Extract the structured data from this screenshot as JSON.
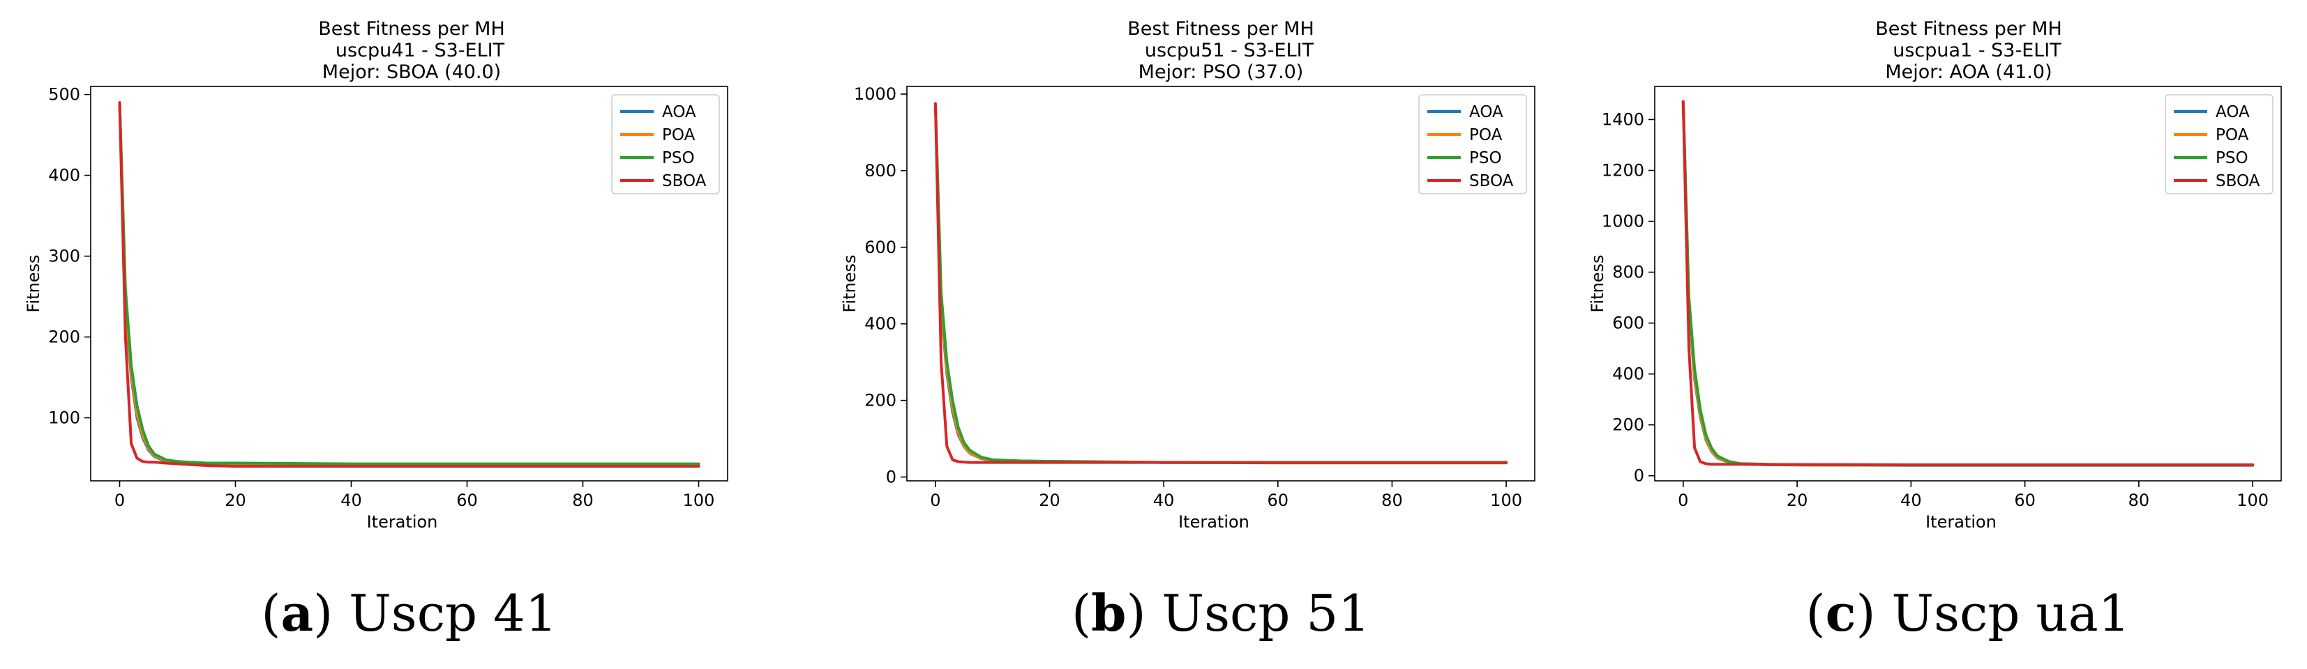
{
  "colors": {
    "AOA": "#1f77b4",
    "POA": "#ff7f0e",
    "PSO": "#2ca02c",
    "SBOA": "#d62728"
  },
  "chart_data": [
    {
      "type": "line",
      "title": "Best Fitness per MH",
      "subtitle": "uscpu41 - S3-ELIT",
      "best": "Mejor: SBOA (40.0)",
      "xlabel": "Iteration",
      "ylabel": "Fitness",
      "xlim": [
        -5,
        105
      ],
      "ylim": [
        22,
        510
      ],
      "xticks": [
        0,
        20,
        40,
        60,
        80,
        100
      ],
      "yticks": [
        100,
        200,
        300,
        400,
        500
      ],
      "legend_position": "top-right",
      "caption_letter": "a",
      "caption_text": " Uscp 41",
      "series": [
        {
          "name": "AOA",
          "x": [
            0,
            1,
            2,
            3,
            4,
            5,
            6,
            8,
            10,
            15,
            20,
            40,
            60,
            80,
            100
          ],
          "y": [
            490,
            240,
            150,
            100,
            75,
            60,
            52,
            46,
            44,
            43,
            42,
            42,
            42,
            42,
            42
          ]
        },
        {
          "name": "POA",
          "x": [
            0,
            1,
            2,
            3,
            4,
            5,
            6,
            8,
            10,
            15,
            20,
            40,
            60,
            80,
            100
          ],
          "y": [
            490,
            245,
            155,
            105,
            78,
            62,
            53,
            47,
            45,
            43,
            42,
            42,
            42,
            42,
            42
          ]
        },
        {
          "name": "PSO",
          "x": [
            0,
            1,
            2,
            3,
            4,
            5,
            6,
            8,
            10,
            15,
            20,
            40,
            60,
            80,
            100
          ],
          "y": [
            490,
            260,
            165,
            115,
            85,
            65,
            55,
            48,
            46,
            44,
            44,
            43,
            43,
            43,
            43
          ]
        },
        {
          "name": "SBOA",
          "x": [
            0,
            1,
            2,
            3,
            4,
            5,
            6,
            8,
            10,
            15,
            20,
            40,
            60,
            80,
            100
          ],
          "y": [
            490,
            200,
            68,
            50,
            46,
            45,
            45,
            44,
            43,
            41,
            40,
            40,
            40,
            40,
            40
          ]
        }
      ]
    },
    {
      "type": "line",
      "title": "Best Fitness per MH",
      "subtitle": "uscpu51 - S3-ELIT",
      "best": "Mejor: PSO (37.0)",
      "xlabel": "Iteration",
      "ylabel": "Fitness",
      "xlim": [
        -5,
        105
      ],
      "ylim": [
        -10,
        1020
      ],
      "xticks": [
        0,
        20,
        40,
        60,
        80,
        100
      ],
      "yticks": [
        0,
        200,
        400,
        600,
        800,
        1000
      ],
      "legend_position": "top-right",
      "caption_letter": "b",
      "caption_text": " Uscp 51",
      "series": [
        {
          "name": "AOA",
          "x": [
            0,
            1,
            2,
            3,
            4,
            5,
            6,
            8,
            10,
            15,
            20,
            28,
            40,
            60,
            80,
            100
          ],
          "y": [
            975,
            440,
            270,
            170,
            110,
            80,
            62,
            48,
            42,
            40,
            39,
            39,
            38,
            38,
            38,
            38
          ]
        },
        {
          "name": "POA",
          "x": [
            0,
            1,
            2,
            3,
            4,
            5,
            6,
            8,
            10,
            15,
            20,
            28,
            40,
            60,
            80,
            100
          ],
          "y": [
            975,
            450,
            280,
            180,
            115,
            82,
            63,
            49,
            43,
            40,
            39,
            39,
            38,
            38,
            38,
            38
          ]
        },
        {
          "name": "PSO",
          "x": [
            0,
            1,
            2,
            3,
            4,
            5,
            6,
            8,
            10,
            15,
            20,
            28,
            40,
            60,
            80,
            100
          ],
          "y": [
            975,
            480,
            300,
            200,
            130,
            90,
            70,
            52,
            45,
            42,
            41,
            40,
            38,
            37,
            37,
            37
          ]
        },
        {
          "name": "SBOA",
          "x": [
            0,
            1,
            2,
            3,
            4,
            5,
            6,
            8,
            10,
            15,
            20,
            28,
            40,
            60,
            80,
            100
          ],
          "y": [
            975,
            300,
            80,
            45,
            40,
            39,
            38,
            38,
            38,
            38,
            38,
            38,
            38,
            38,
            38,
            38
          ]
        }
      ]
    },
    {
      "type": "line",
      "title": "Best Fitness per MH",
      "subtitle": "uscpua1 - S3-ELIT",
      "best": "Mejor: AOA (41.0)",
      "xlabel": "Iteration",
      "ylabel": "Fitness",
      "xlim": [
        -5,
        105
      ],
      "ylim": [
        -20,
        1530
      ],
      "xticks": [
        0,
        20,
        40,
        60,
        80,
        100
      ],
      "yticks": [
        0,
        200,
        400,
        600,
        800,
        1000,
        1200,
        1400
      ],
      "legend_position": "top-right",
      "caption_letter": "c",
      "caption_text": " Uscp ua1",
      "series": [
        {
          "name": "AOA",
          "x": [
            0,
            1,
            2,
            3,
            4,
            5,
            6,
            8,
            10,
            15,
            22,
            40,
            60,
            80,
            100
          ],
          "y": [
            1470,
            650,
            380,
            230,
            140,
            95,
            70,
            52,
            46,
            43,
            42,
            41,
            41,
            41,
            41
          ]
        },
        {
          "name": "POA",
          "x": [
            0,
            1,
            2,
            3,
            4,
            5,
            6,
            8,
            10,
            15,
            22,
            40,
            60,
            80,
            100
          ],
          "y": [
            1470,
            660,
            390,
            240,
            145,
            98,
            72,
            53,
            47,
            44,
            42,
            42,
            42,
            42,
            42
          ]
        },
        {
          "name": "PSO",
          "x": [
            0,
            1,
            2,
            3,
            4,
            5,
            6,
            8,
            10,
            15,
            22,
            40,
            60,
            80,
            100
          ],
          "y": [
            1470,
            700,
            420,
            260,
            160,
            108,
            78,
            56,
            48,
            45,
            43,
            42,
            42,
            42,
            42
          ]
        },
        {
          "name": "SBOA",
          "x": [
            0,
            1,
            2,
            3,
            4,
            5,
            6,
            8,
            10,
            15,
            22,
            40,
            60,
            80,
            100
          ],
          "y": [
            1470,
            500,
            110,
            55,
            47,
            45,
            45,
            45,
            45,
            44,
            44,
            43,
            43,
            43,
            43
          ]
        }
      ]
    }
  ]
}
